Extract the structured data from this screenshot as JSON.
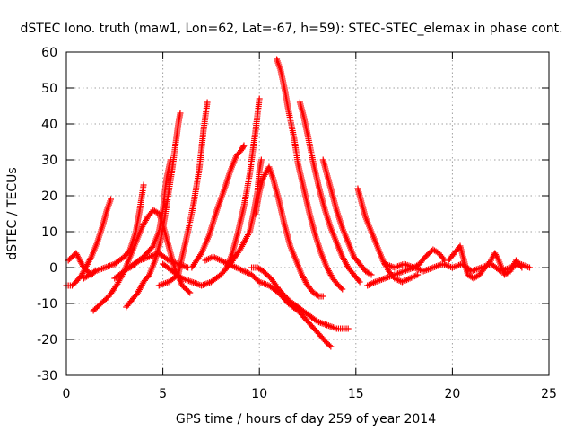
{
  "chart_data": {
    "type": "scatter",
    "title": "dSTEC Iono. truth (maw1, Lon=62, Lat=-67, h=59): STEC-STEC_elemax in phase cont.",
    "xlabel": "GPS time / hours of day 259 of year 2014",
    "ylabel": "dSTEC  / TECUs",
    "xlim": [
      0,
      25
    ],
    "ylim": [
      -30,
      60
    ],
    "xticks": [
      0,
      5,
      10,
      15,
      20,
      25
    ],
    "yticks": [
      -30,
      -20,
      -10,
      0,
      10,
      20,
      30,
      40,
      50,
      60
    ],
    "grid": true,
    "legend": "none",
    "marker": "+",
    "color": "#ff0000",
    "series": [
      {
        "points": [
          [
            0.0,
            -5
          ],
          [
            0.3,
            -5
          ],
          [
            0.5,
            -4
          ],
          [
            0.8,
            -2
          ],
          [
            1.0,
            0
          ],
          [
            1.3,
            3
          ],
          [
            1.6,
            7
          ],
          [
            1.9,
            12
          ],
          [
            2.1,
            16
          ],
          [
            2.3,
            19
          ]
        ]
      },
      {
        "points": [
          [
            0.1,
            2
          ],
          [
            0.3,
            3
          ],
          [
            0.5,
            4
          ],
          [
            0.7,
            2
          ],
          [
            0.9,
            0
          ],
          [
            1.1,
            -1
          ],
          [
            1.3,
            -2
          ],
          [
            1.5,
            -1
          ]
        ]
      },
      {
        "points": [
          [
            0.9,
            -3
          ],
          [
            1.2,
            -2
          ],
          [
            1.5,
            -1
          ],
          [
            2.0,
            0
          ],
          [
            2.5,
            1
          ],
          [
            3.0,
            3
          ],
          [
            3.3,
            5
          ],
          [
            3.6,
            10
          ],
          [
            3.8,
            16
          ],
          [
            4.0,
            23
          ]
        ]
      },
      {
        "points": [
          [
            1.4,
            -12
          ],
          [
            1.8,
            -10
          ],
          [
            2.2,
            -8
          ],
          [
            2.6,
            -5
          ],
          [
            3.0,
            -1
          ],
          [
            3.3,
            3
          ],
          [
            3.6,
            7
          ],
          [
            3.9,
            11
          ],
          [
            4.2,
            14
          ],
          [
            4.5,
            16
          ],
          [
            4.8,
            15
          ],
          [
            5.0,
            12
          ],
          [
            5.3,
            6
          ],
          [
            5.6,
            0
          ],
          [
            6.0,
            -5
          ],
          [
            6.4,
            -7
          ]
        ]
      },
      {
        "points": [
          [
            3.1,
            -11
          ],
          [
            3.4,
            -9
          ],
          [
            3.7,
            -7
          ],
          [
            4.0,
            -4
          ],
          [
            4.3,
            -2
          ],
          [
            4.6,
            2
          ],
          [
            4.9,
            8
          ],
          [
            5.1,
            14
          ],
          [
            5.3,
            21
          ],
          [
            5.5,
            28
          ],
          [
            5.7,
            36
          ],
          [
            5.8,
            40
          ],
          [
            5.9,
            43
          ]
        ]
      },
      {
        "points": [
          [
            2.5,
            -3
          ],
          [
            3.0,
            -1
          ],
          [
            3.5,
            1
          ],
          [
            4.0,
            3
          ],
          [
            4.5,
            6
          ],
          [
            4.8,
            10
          ],
          [
            5.0,
            16
          ],
          [
            5.1,
            21
          ],
          [
            5.2,
            25
          ],
          [
            5.4,
            30
          ]
        ]
      },
      {
        "points": [
          [
            3.3,
            0
          ],
          [
            3.8,
            2
          ],
          [
            4.3,
            3
          ],
          [
            4.8,
            4
          ],
          [
            5.3,
            2
          ],
          [
            5.8,
            1
          ],
          [
            6.3,
            0
          ]
        ]
      },
      {
        "points": [
          [
            4.8,
            -5
          ],
          [
            5.3,
            -4
          ],
          [
            5.8,
            -2
          ],
          [
            6.0,
            3
          ],
          [
            6.3,
            10
          ],
          [
            6.6,
            18
          ],
          [
            6.9,
            28
          ],
          [
            7.1,
            38
          ],
          [
            7.3,
            46
          ]
        ]
      },
      {
        "points": [
          [
            5.0,
            1
          ],
          [
            5.5,
            -1
          ],
          [
            6.0,
            -3
          ],
          [
            6.5,
            -4
          ],
          [
            7.0,
            -5
          ],
          [
            7.5,
            -4
          ],
          [
            8.0,
            -2
          ],
          [
            8.5,
            1
          ],
          [
            9.0,
            5
          ],
          [
            9.5,
            10
          ],
          [
            9.7,
            15
          ],
          [
            9.9,
            21
          ],
          [
            10.0,
            27
          ],
          [
            10.1,
            30
          ]
        ]
      },
      {
        "points": [
          [
            6.5,
            0
          ],
          [
            7.0,
            4
          ],
          [
            7.4,
            9
          ],
          [
            7.8,
            16
          ],
          [
            8.2,
            22
          ],
          [
            8.5,
            27
          ],
          [
            8.8,
            31
          ],
          [
            9.1,
            33
          ],
          [
            9.2,
            34
          ]
        ]
      },
      {
        "points": [
          [
            8.3,
            0
          ],
          [
            8.6,
            4
          ],
          [
            8.9,
            10
          ],
          [
            9.2,
            17
          ],
          [
            9.5,
            26
          ],
          [
            9.8,
            38
          ],
          [
            10.0,
            47
          ]
        ]
      },
      {
        "points": [
          [
            7.2,
            2
          ],
          [
            7.6,
            3
          ],
          [
            8.0,
            2
          ],
          [
            8.4,
            1
          ],
          [
            8.8,
            0
          ],
          [
            9.2,
            -1
          ],
          [
            9.6,
            -2
          ],
          [
            10.0,
            -4
          ],
          [
            10.5,
            -5
          ],
          [
            11.0,
            -7
          ],
          [
            11.5,
            -10
          ],
          [
            12.0,
            -12
          ],
          [
            12.5,
            -15
          ],
          [
            13.0,
            -18
          ],
          [
            13.5,
            -21
          ],
          [
            13.7,
            -22
          ]
        ]
      },
      {
        "points": [
          [
            9.6,
            0
          ],
          [
            9.9,
            0
          ],
          [
            10.2,
            -1
          ],
          [
            10.6,
            -3
          ],
          [
            11.0,
            -6
          ],
          [
            11.5,
            -9
          ],
          [
            12.0,
            -11
          ],
          [
            12.5,
            -13
          ],
          [
            13.0,
            -15
          ],
          [
            13.5,
            -16
          ],
          [
            14.0,
            -17
          ],
          [
            14.6,
            -17
          ]
        ]
      },
      {
        "points": [
          [
            9.8,
            15
          ],
          [
            10.0,
            21
          ],
          [
            10.2,
            25
          ],
          [
            10.5,
            28
          ],
          [
            10.7,
            25
          ],
          [
            11.0,
            19
          ],
          [
            11.3,
            12
          ],
          [
            11.6,
            6
          ],
          [
            11.9,
            2
          ],
          [
            12.2,
            -2
          ],
          [
            12.5,
            -5
          ],
          [
            12.8,
            -7
          ],
          [
            13.1,
            -8
          ],
          [
            13.3,
            -8
          ]
        ]
      },
      {
        "points": [
          [
            10.9,
            58
          ],
          [
            11.1,
            55
          ],
          [
            11.3,
            50
          ],
          [
            11.5,
            44
          ],
          [
            11.8,
            36
          ],
          [
            12.0,
            29
          ],
          [
            12.3,
            22
          ],
          [
            12.6,
            15
          ],
          [
            12.9,
            9
          ],
          [
            13.2,
            4
          ],
          [
            13.5,
            0
          ],
          [
            13.8,
            -3
          ],
          [
            14.1,
            -5
          ],
          [
            14.3,
            -6
          ]
        ]
      },
      {
        "points": [
          [
            12.1,
            46
          ],
          [
            12.3,
            42
          ],
          [
            12.5,
            37
          ],
          [
            12.8,
            29
          ],
          [
            13.1,
            22
          ],
          [
            13.4,
            16
          ],
          [
            13.7,
            11
          ],
          [
            14.0,
            7
          ],
          [
            14.3,
            3
          ],
          [
            14.6,
            0
          ],
          [
            14.9,
            -2
          ],
          [
            15.2,
            -4
          ]
        ]
      },
      {
        "points": [
          [
            13.3,
            30
          ],
          [
            13.5,
            26
          ],
          [
            13.7,
            22
          ],
          [
            14.0,
            16
          ],
          [
            14.3,
            11
          ],
          [
            14.6,
            7
          ],
          [
            14.9,
            3
          ],
          [
            15.2,
            1
          ],
          [
            15.5,
            -1
          ],
          [
            15.8,
            -2
          ]
        ]
      },
      {
        "points": [
          [
            15.1,
            22
          ],
          [
            15.3,
            18
          ],
          [
            15.5,
            14
          ],
          [
            15.8,
            10
          ],
          [
            16.1,
            6
          ],
          [
            16.4,
            2
          ],
          [
            16.7,
            -1
          ],
          [
            17.0,
            -3
          ],
          [
            17.4,
            -4
          ],
          [
            17.8,
            -3
          ],
          [
            18.2,
            -2
          ]
        ]
      },
      {
        "points": [
          [
            15.6,
            -5
          ],
          [
            16.0,
            -4
          ],
          [
            16.5,
            -3
          ],
          [
            17.0,
            -2
          ],
          [
            17.5,
            -1
          ],
          [
            18.0,
            0
          ],
          [
            18.3,
            1
          ],
          [
            18.6,
            3
          ],
          [
            19.0,
            5
          ],
          [
            19.3,
            4
          ],
          [
            19.6,
            2
          ]
        ]
      },
      {
        "points": [
          [
            16.5,
            1
          ],
          [
            17.0,
            0
          ],
          [
            17.5,
            1
          ],
          [
            18.0,
            0
          ],
          [
            18.5,
            -1
          ],
          [
            19.0,
            0
          ],
          [
            19.5,
            1
          ],
          [
            20.0,
            0
          ],
          [
            20.5,
            1
          ],
          [
            21.0,
            -1
          ],
          [
            21.5,
            0
          ],
          [
            22.0,
            1
          ],
          [
            22.5,
            -1
          ],
          [
            23.0,
            0
          ],
          [
            23.5,
            1
          ],
          [
            24.0,
            0
          ]
        ]
      },
      {
        "points": [
          [
            19.8,
            2
          ],
          [
            20.1,
            4
          ],
          [
            20.4,
            6
          ],
          [
            20.6,
            2
          ],
          [
            20.8,
            -2
          ],
          [
            21.1,
            -3
          ],
          [
            21.4,
            -2
          ],
          [
            21.7,
            0
          ],
          [
            22.0,
            2
          ],
          [
            22.2,
            4
          ],
          [
            22.4,
            2
          ],
          [
            22.7,
            -2
          ],
          [
            23.0,
            -1
          ],
          [
            23.3,
            2
          ],
          [
            23.6,
            0
          ]
        ]
      }
    ]
  }
}
